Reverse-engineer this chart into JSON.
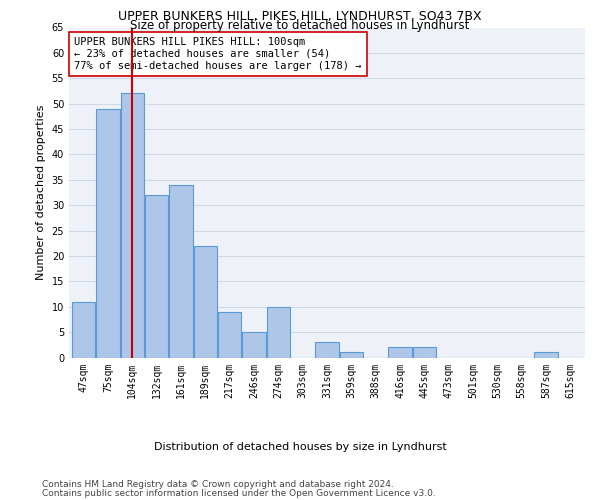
{
  "title1": "UPPER BUNKERS HILL, PIKES HILL, LYNDHURST, SO43 7BX",
  "title2": "Size of property relative to detached houses in Lyndhurst",
  "xlabel": "Distribution of detached houses by size in Lyndhurst",
  "ylabel": "Number of detached properties",
  "categories": [
    "47sqm",
    "75sqm",
    "104sqm",
    "132sqm",
    "161sqm",
    "189sqm",
    "217sqm",
    "246sqm",
    "274sqm",
    "303sqm",
    "331sqm",
    "359sqm",
    "388sqm",
    "416sqm",
    "445sqm",
    "473sqm",
    "501sqm",
    "530sqm",
    "558sqm",
    "587sqm",
    "615sqm"
  ],
  "values": [
    11,
    49,
    52,
    32,
    34,
    22,
    9,
    5,
    10,
    0,
    3,
    1,
    0,
    2,
    2,
    0,
    0,
    0,
    0,
    1,
    0
  ],
  "bar_color": "#aec6e8",
  "bar_edge_color": "#5b9bd5",
  "ref_line_x": 2.0,
  "ref_line_color": "#cc0000",
  "annotation_text": "UPPER BUNKERS HILL PIKES HILL: 100sqm\n← 23% of detached houses are smaller (54)\n77% of semi-detached houses are larger (178) →",
  "annotation_box_color": "#ffffff",
  "annotation_box_edge": "#cc0000",
  "ylim": [
    0,
    65
  ],
  "yticks": [
    0,
    5,
    10,
    15,
    20,
    25,
    30,
    35,
    40,
    45,
    50,
    55,
    60,
    65
  ],
  "grid_color": "#d0d8e8",
  "bg_color": "#eef2f8",
  "footer1": "Contains HM Land Registry data © Crown copyright and database right 2024.",
  "footer2": "Contains public sector information licensed under the Open Government Licence v3.0.",
  "title1_fontsize": 9,
  "title2_fontsize": 8.5,
  "axis_label_fontsize": 8,
  "tick_fontsize": 7,
  "annotation_fontsize": 7.5,
  "footer_fontsize": 6.5
}
